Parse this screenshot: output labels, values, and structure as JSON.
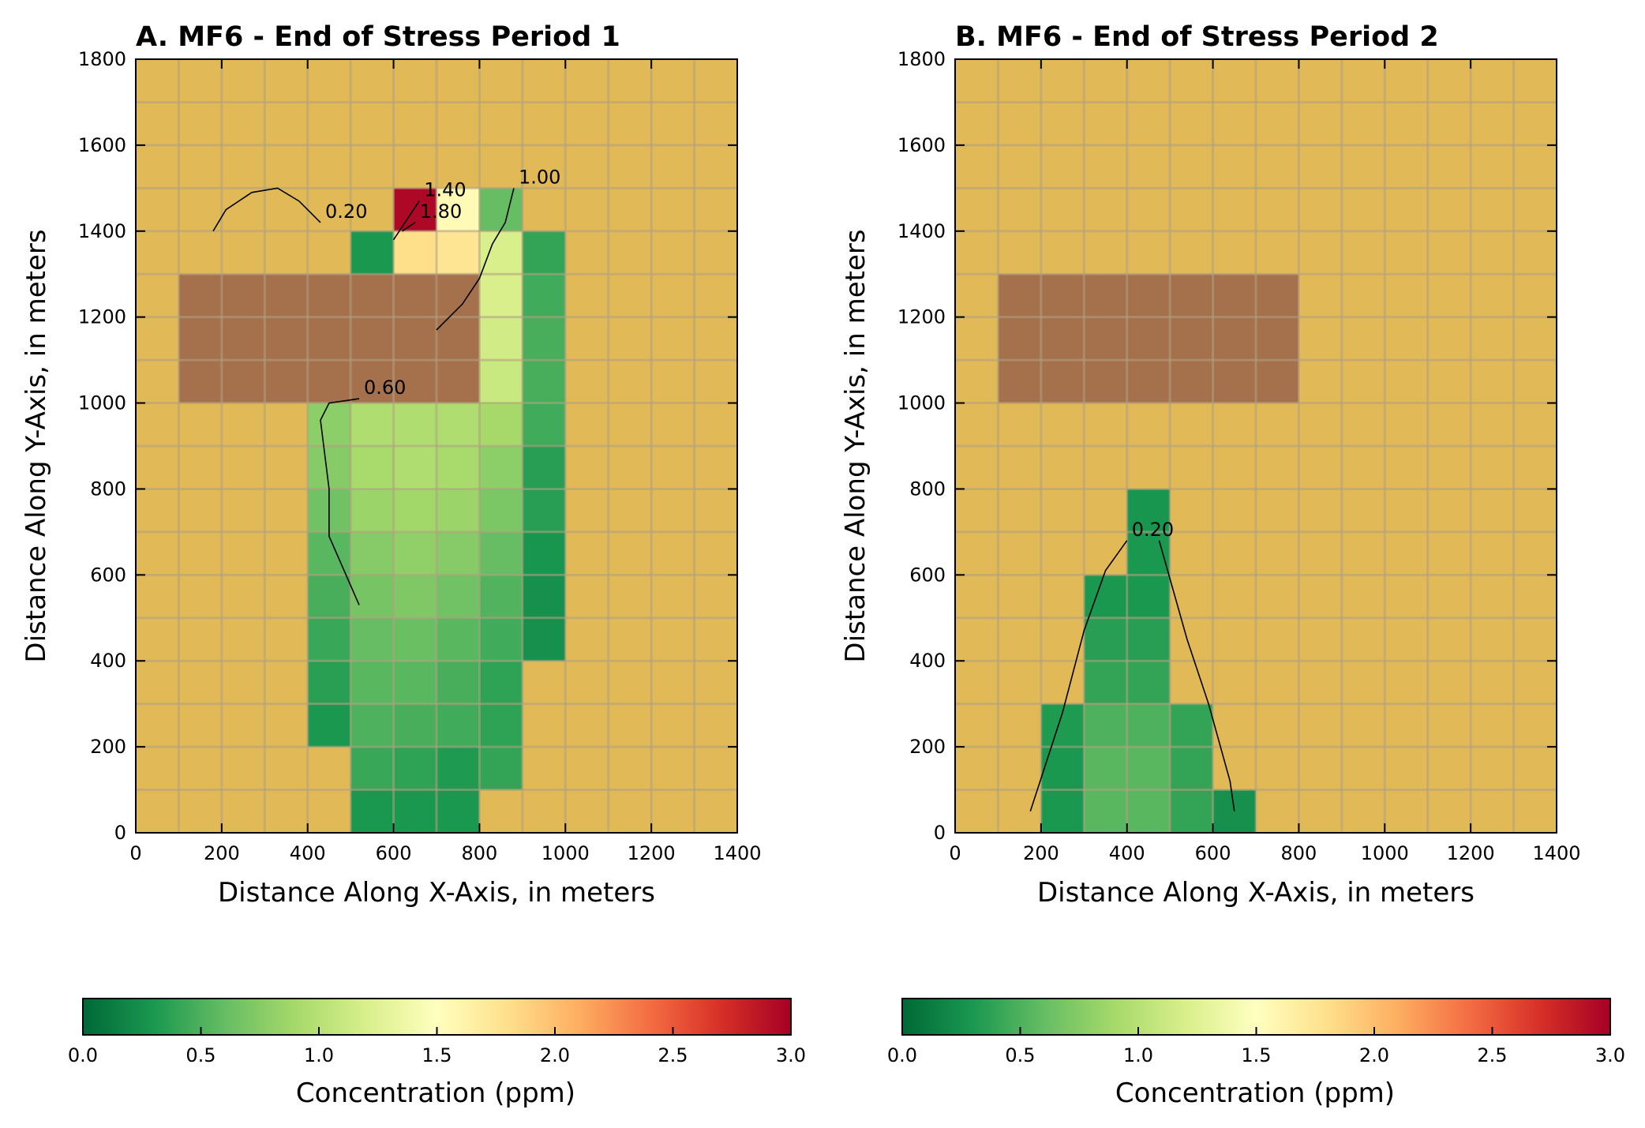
{
  "colors": {
    "background": "#e1b957",
    "inactive": "#a4714c",
    "gridline": "#b0a082",
    "colormap": [
      "#006837",
      "#1a9850",
      "#66bd63",
      "#a6d96a",
      "#d9ef8b",
      "#ffffbf",
      "#fee08b",
      "#fdae61",
      "#f46d43",
      "#d73027",
      "#a50026"
    ]
  },
  "chart_data": [
    {
      "type": "heatmap",
      "title": "A. MF6 - End of Stress Period 1",
      "xlabel": "Distance Along X-Axis, in meters",
      "ylabel": "Distance Along Y-Axis, in meters",
      "xlim": [
        0,
        1400
      ],
      "ylim": [
        0,
        1800
      ],
      "xticks": [
        "0",
        "200",
        "400",
        "600",
        "800",
        "1000",
        "1200",
        "1400"
      ],
      "yticks": [
        "0",
        "200",
        "400",
        "600",
        "800",
        "1000",
        "1200",
        "1400",
        "1600",
        "1800"
      ],
      "cell_size": [
        100,
        100
      ],
      "inactive_region": {
        "x": [
          100,
          800
        ],
        "y": [
          1000,
          1300
        ]
      },
      "cells": [
        {
          "x": 500,
          "y": 0,
          "c": 0.3
        },
        {
          "x": 600,
          "y": 0,
          "c": 0.3
        },
        {
          "x": 700,
          "y": 0,
          "c": 0.3
        },
        {
          "x": 500,
          "y": 100,
          "c": 0.42
        },
        {
          "x": 600,
          "y": 100,
          "c": 0.38
        },
        {
          "x": 700,
          "y": 100,
          "c": 0.32
        },
        {
          "x": 800,
          "y": 100,
          "c": 0.4
        },
        {
          "x": 400,
          "y": 200,
          "c": 0.3
        },
        {
          "x": 500,
          "y": 200,
          "c": 0.5
        },
        {
          "x": 600,
          "y": 200,
          "c": 0.48
        },
        {
          "x": 700,
          "y": 200,
          "c": 0.45
        },
        {
          "x": 800,
          "y": 200,
          "c": 0.38
        },
        {
          "x": 400,
          "y": 300,
          "c": 0.36
        },
        {
          "x": 500,
          "y": 300,
          "c": 0.55
        },
        {
          "x": 600,
          "y": 300,
          "c": 0.55
        },
        {
          "x": 700,
          "y": 300,
          "c": 0.48
        },
        {
          "x": 800,
          "y": 300,
          "c": 0.38
        },
        {
          "x": 400,
          "y": 400,
          "c": 0.42
        },
        {
          "x": 500,
          "y": 400,
          "c": 0.6
        },
        {
          "x": 600,
          "y": 400,
          "c": 0.62
        },
        {
          "x": 700,
          "y": 400,
          "c": 0.55
        },
        {
          "x": 800,
          "y": 400,
          "c": 0.45
        },
        {
          "x": 900,
          "y": 400,
          "c": 0.25
        },
        {
          "x": 400,
          "y": 500,
          "c": 0.48
        },
        {
          "x": 500,
          "y": 500,
          "c": 0.68
        },
        {
          "x": 600,
          "y": 500,
          "c": 0.72
        },
        {
          "x": 700,
          "y": 500,
          "c": 0.65
        },
        {
          "x": 800,
          "y": 500,
          "c": 0.52
        },
        {
          "x": 900,
          "y": 500,
          "c": 0.25
        },
        {
          "x": 400,
          "y": 600,
          "c": 0.55
        },
        {
          "x": 500,
          "y": 600,
          "c": 0.75
        },
        {
          "x": 600,
          "y": 600,
          "c": 0.8
        },
        {
          "x": 700,
          "y": 600,
          "c": 0.75
        },
        {
          "x": 800,
          "y": 600,
          "c": 0.6
        },
        {
          "x": 900,
          "y": 600,
          "c": 0.28
        },
        {
          "x": 400,
          "y": 700,
          "c": 0.65
        },
        {
          "x": 500,
          "y": 700,
          "c": 0.85
        },
        {
          "x": 600,
          "y": 700,
          "c": 0.88
        },
        {
          "x": 700,
          "y": 700,
          "c": 0.85
        },
        {
          "x": 800,
          "y": 700,
          "c": 0.7
        },
        {
          "x": 900,
          "y": 700,
          "c": 0.35
        },
        {
          "x": 400,
          "y": 800,
          "c": 0.75
        },
        {
          "x": 500,
          "y": 800,
          "c": 0.92
        },
        {
          "x": 600,
          "y": 800,
          "c": 0.95
        },
        {
          "x": 700,
          "y": 800,
          "c": 0.92
        },
        {
          "x": 800,
          "y": 800,
          "c": 0.78
        },
        {
          "x": 900,
          "y": 800,
          "c": 0.35
        },
        {
          "x": 400,
          "y": 900,
          "c": 0.78
        },
        {
          "x": 500,
          "y": 900,
          "c": 0.95
        },
        {
          "x": 600,
          "y": 900,
          "c": 0.95
        },
        {
          "x": 700,
          "y": 900,
          "c": 0.95
        },
        {
          "x": 800,
          "y": 900,
          "c": 0.9
        },
        {
          "x": 900,
          "y": 900,
          "c": 0.45
        },
        {
          "x": 800,
          "y": 1000,
          "c": 1.1
        },
        {
          "x": 900,
          "y": 1000,
          "c": 0.48
        },
        {
          "x": 800,
          "y": 1100,
          "c": 1.15
        },
        {
          "x": 900,
          "y": 1100,
          "c": 0.48
        },
        {
          "x": 800,
          "y": 1200,
          "c": 1.2
        },
        {
          "x": 900,
          "y": 1200,
          "c": 0.45
        },
        {
          "x": 500,
          "y": 1300,
          "c": 0.3
        },
        {
          "x": 600,
          "y": 1300,
          "c": 1.8
        },
        {
          "x": 700,
          "y": 1300,
          "c": 1.75
        },
        {
          "x": 800,
          "y": 1300,
          "c": 1.2
        },
        {
          "x": 900,
          "y": 1300,
          "c": 0.4
        },
        {
          "x": 600,
          "y": 1400,
          "c": 2.95
        },
        {
          "x": 700,
          "y": 1400,
          "c": 1.55
        },
        {
          "x": 800,
          "y": 1400,
          "c": 0.6
        }
      ],
      "contours": [
        {
          "label": "0.20",
          "points": [
            [
              180,
              1400
            ],
            [
              210,
              1450
            ],
            [
              270,
              1490
            ],
            [
              330,
              1500
            ],
            [
              380,
              1470
            ],
            [
              430,
              1420
            ]
          ]
        },
        {
          "label": "0.60",
          "points": [
            [
              520,
              530
            ],
            [
              450,
              690
            ],
            [
              450,
              800
            ],
            [
              430,
              960
            ],
            [
              450,
              1000
            ],
            [
              520,
              1010
            ]
          ]
        },
        {
          "label": "1.00",
          "points": [
            [
              700,
              1170
            ],
            [
              760,
              1230
            ],
            [
              800,
              1290
            ],
            [
              830,
              1370
            ],
            [
              860,
              1420
            ],
            [
              880,
              1500
            ]
          ]
        },
        {
          "label": "1.40",
          "points": [
            [
              600,
              1380
            ],
            [
              640,
              1440
            ],
            [
              660,
              1470
            ]
          ]
        },
        {
          "label": "1.80",
          "points": [
            [
              620,
              1400
            ],
            [
              650,
              1420
            ]
          ]
        }
      ]
    },
    {
      "type": "heatmap",
      "title": "B. MF6 - End of Stress Period 2",
      "xlabel": "Distance Along X-Axis, in meters",
      "ylabel": "Distance Along Y-Axis, in meters",
      "xlim": [
        0,
        1400
      ],
      "ylim": [
        0,
        1800
      ],
      "xticks": [
        "0",
        "200",
        "400",
        "600",
        "800",
        "1000",
        "1200",
        "1400"
      ],
      "yticks": [
        "0",
        "200",
        "400",
        "600",
        "800",
        "1000",
        "1200",
        "1400",
        "1600",
        "1800"
      ],
      "cell_size": [
        100,
        100
      ],
      "inactive_region": {
        "x": [
          100,
          800
        ],
        "y": [
          1000,
          1300
        ]
      },
      "cells": [
        {
          "x": 200,
          "y": 0,
          "c": 0.3
        },
        {
          "x": 300,
          "y": 0,
          "c": 0.55
        },
        {
          "x": 400,
          "y": 0,
          "c": 0.55
        },
        {
          "x": 500,
          "y": 0,
          "c": 0.4
        },
        {
          "x": 600,
          "y": 0,
          "c": 0.25
        },
        {
          "x": 200,
          "y": 100,
          "c": 0.3
        },
        {
          "x": 300,
          "y": 100,
          "c": 0.55
        },
        {
          "x": 400,
          "y": 100,
          "c": 0.55
        },
        {
          "x": 500,
          "y": 100,
          "c": 0.4
        },
        {
          "x": 200,
          "y": 200,
          "c": 0.32
        },
        {
          "x": 300,
          "y": 200,
          "c": 0.5
        },
        {
          "x": 400,
          "y": 200,
          "c": 0.5
        },
        {
          "x": 500,
          "y": 200,
          "c": 0.4
        },
        {
          "x": 300,
          "y": 300,
          "c": 0.4
        },
        {
          "x": 400,
          "y": 300,
          "c": 0.4
        },
        {
          "x": 300,
          "y": 400,
          "c": 0.35
        },
        {
          "x": 400,
          "y": 400,
          "c": 0.35
        },
        {
          "x": 300,
          "y": 500,
          "c": 0.3
        },
        {
          "x": 400,
          "y": 500,
          "c": 0.3
        },
        {
          "x": 400,
          "y": 600,
          "c": 0.3
        },
        {
          "x": 400,
          "y": 700,
          "c": 0.28
        }
      ],
      "contours": [
        {
          "label": "0.20",
          "points": [
            [
              175,
              50
            ],
            [
              250,
              280
            ],
            [
              300,
              470
            ],
            [
              350,
              610
            ],
            [
              400,
              680
            ]
          ]
        },
        {
          "label": "",
          "points": [
            [
              475,
              680
            ],
            [
              540,
              450
            ],
            [
              590,
              300
            ],
            [
              640,
              120
            ],
            [
              650,
              50
            ]
          ]
        }
      ]
    }
  ],
  "colorbars": [
    {
      "label": "Concentration (ppm)",
      "range": [
        0.0,
        3.0
      ],
      "ticks": [
        "0.0",
        "0.5",
        "1.0",
        "1.5",
        "2.0",
        "2.5",
        "3.0"
      ]
    },
    {
      "label": "Concentration (ppm)",
      "range": [
        0.0,
        3.0
      ],
      "ticks": [
        "0.0",
        "0.5",
        "1.0",
        "1.5",
        "2.0",
        "2.5",
        "3.0"
      ]
    }
  ]
}
